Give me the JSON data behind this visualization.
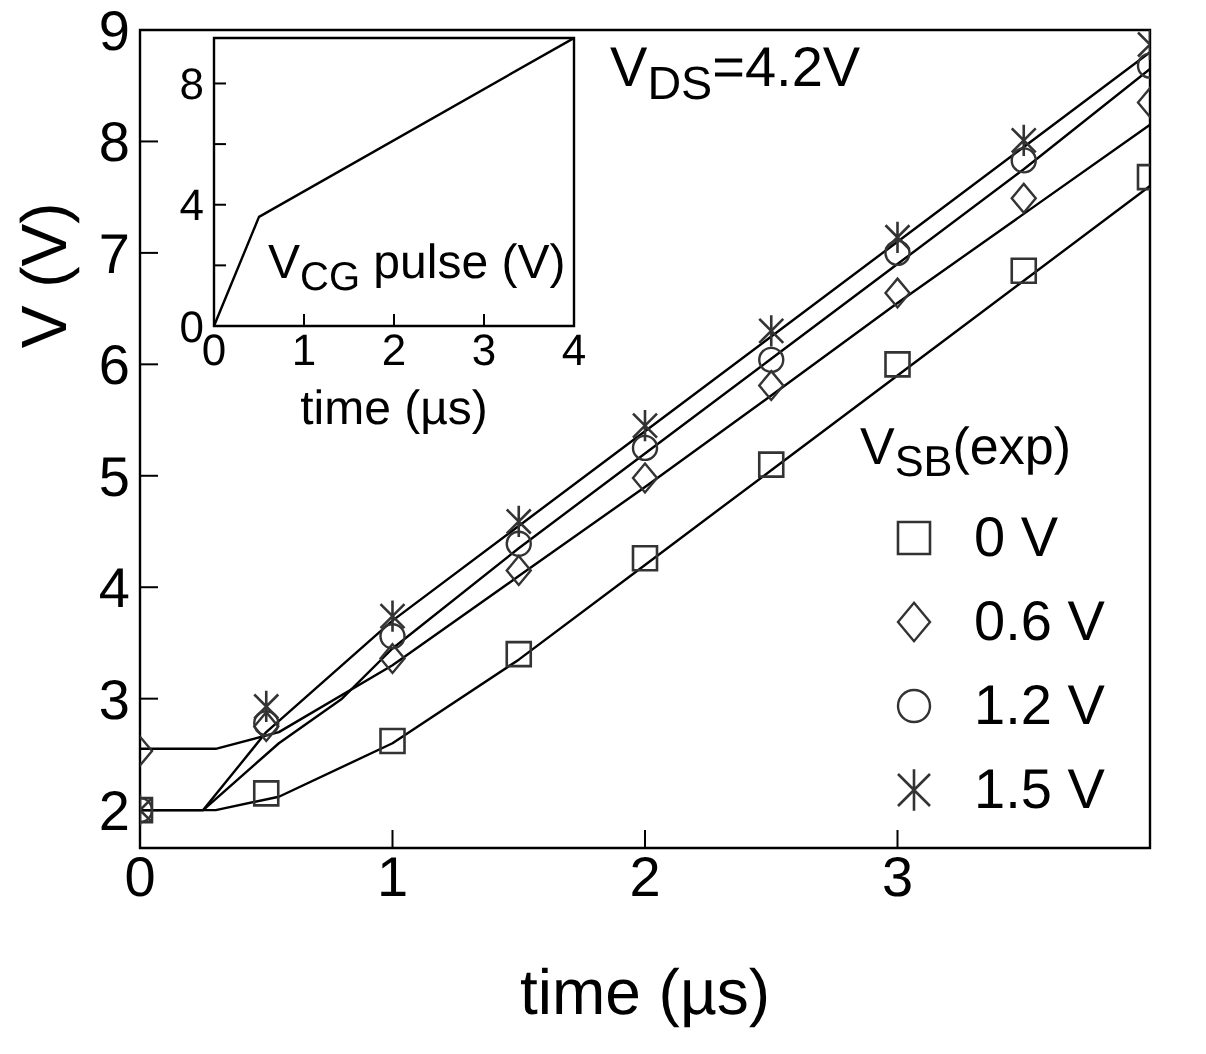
{
  "chart_data": [
    {
      "type": "scatter",
      "xlabel": "time (µs)",
      "ylabel": "V (V)",
      "xlim": [
        0,
        4
      ],
      "xticks": [
        0,
        1,
        2,
        3
      ],
      "ylim": [
        1.66,
        9
      ],
      "yticks": [
        2,
        3,
        4,
        5,
        6,
        7,
        8,
        9
      ],
      "annotations": [
        "V$_{DS}$=4.2V"
      ],
      "legend": "bottom right",
      "legend_title": "V$_{SB}$(exp)",
      "x": [
        0,
        0.5,
        1,
        1.5,
        2,
        2.5,
        3,
        3.5,
        4
      ],
      "series": [
        {
          "name": "0 V",
          "color": "#333333",
          "marker": "square",
          "values": [
            2.0,
            2.15,
            2.62,
            3.4,
            4.26,
            5.1,
            6.0,
            6.84,
            7.68
          ]
        },
        {
          "name": "0.6 V",
          "color": "#333333",
          "marker": "diamond",
          "values": [
            2.53,
            2.75,
            3.36,
            4.15,
            4.98,
            5.81,
            6.64,
            7.49,
            8.35
          ]
        },
        {
          "name": "1.2 V",
          "color": "#333333",
          "marker": "circle",
          "values": [
            2.0,
            2.78,
            3.56,
            4.39,
            5.25,
            6.04,
            7.0,
            7.83,
            8.68
          ]
        },
        {
          "name": "1.5 V",
          "color": "#333333",
          "marker": "cross",
          "values": [
            2.0,
            2.93,
            3.74,
            4.59,
            5.45,
            6.3,
            7.14,
            8.01,
            8.87
          ]
        },
        {
          "type": "line",
          "color": "#000000",
          "marker": "none",
          "x": [
            0,
            0.3,
            0.55,
            1,
            1.5,
            2,
            2.5,
            3,
            3.5,
            4
          ],
          "values": [
            2.0,
            2.0,
            2.12,
            2.6,
            3.35,
            4.2,
            5.05,
            5.9,
            6.75,
            7.6
          ]
        },
        {
          "type": "line",
          "color": "#000000",
          "marker": "none",
          "x": [
            0,
            0.3,
            0.55,
            1,
            1.5,
            2,
            2.5,
            3,
            3.5,
            4
          ],
          "values": [
            2.55,
            2.55,
            2.7,
            3.3,
            4.1,
            4.9,
            5.72,
            6.55,
            7.35,
            8.15
          ]
        },
        {
          "type": "line",
          "color": "#000000",
          "marker": "none",
          "x": [
            0,
            0.25,
            0.55,
            0.8,
            1,
            1.5,
            2,
            2.5,
            3,
            3.5,
            4
          ],
          "values": [
            2.0,
            2.0,
            2.6,
            3.0,
            3.45,
            4.35,
            5.2,
            6.05,
            6.9,
            7.75,
            8.65
          ]
        },
        {
          "type": "line",
          "color": "#000000",
          "marker": "none",
          "x": [
            0,
            0.25,
            0.5,
            1,
            1.5,
            2,
            2.5,
            3,
            3.5,
            4
          ],
          "values": [
            2.0,
            2.0,
            2.7,
            3.7,
            4.55,
            5.4,
            6.25,
            7.1,
            7.95,
            8.8
          ]
        }
      ]
    },
    {
      "type": "line",
      "xlabel": "time (µs)",
      "ylabel": "V$_{CG}$ pulse (V)",
      "xlim": [
        0,
        4
      ],
      "xticks": [
        0,
        1,
        2,
        3,
        4
      ],
      "ylim": [
        0,
        9.5
      ],
      "yticks": [
        0,
        {
          "value": 2,
          "label": null
        },
        4,
        {
          "value": 6,
          "label": null
        },
        8
      ],
      "x": [
        0,
        0.5,
        4
      ],
      "series": [
        {
          "color": "#000000",
          "values": [
            0,
            3.6,
            9.5
          ]
        }
      ]
    }
  ]
}
